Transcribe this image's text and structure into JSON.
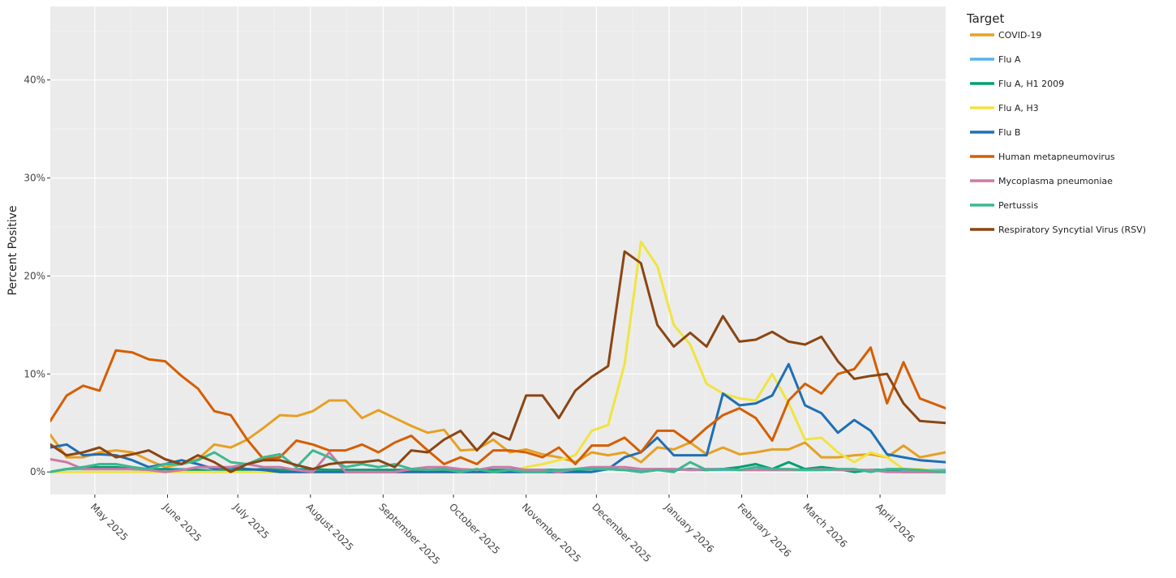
{
  "chart_data": {
    "type": "line",
    "ylabel": "Percent Positive",
    "yticks": [
      0,
      10,
      20,
      30,
      40
    ],
    "ytick_suffix": "%",
    "ylim": [
      -2.3,
      47.5
    ],
    "xlim": [
      "2025-04-12",
      "2026-04-29"
    ],
    "xticks": [
      {
        "date": "2025-05-01",
        "label": "May 2025"
      },
      {
        "date": "2025-06-01",
        "label": "June 2025"
      },
      {
        "date": "2025-07-01",
        "label": "July 2025"
      },
      {
        "date": "2025-08-01",
        "label": "August 2025"
      },
      {
        "date": "2025-09-01",
        "label": "September 2025"
      },
      {
        "date": "2025-10-01",
        "label": "October 2025"
      },
      {
        "date": "2025-11-01",
        "label": "November 2025"
      },
      {
        "date": "2025-12-01",
        "label": "December 2025"
      },
      {
        "date": "2026-01-01",
        "label": "January 2026"
      },
      {
        "date": "2026-02-01",
        "label": "February 2026"
      },
      {
        "date": "2026-03-01",
        "label": "March 2026"
      },
      {
        "date": "2026-04-01",
        "label": "April 2026"
      }
    ],
    "grid": true,
    "legend_position": "right",
    "legend_title": "Target",
    "x": [
      "2025-04-12",
      "2025-04-19",
      "2025-04-26",
      "2025-05-03",
      "2025-05-10",
      "2025-05-17",
      "2025-05-24",
      "2025-05-31",
      "2025-06-07",
      "2025-06-14",
      "2025-06-21",
      "2025-06-28",
      "2025-07-05",
      "2025-07-12",
      "2025-07-19",
      "2025-07-26",
      "2025-08-02",
      "2025-08-09",
      "2025-08-16",
      "2025-08-23",
      "2025-08-30",
      "2025-09-06",
      "2025-09-13",
      "2025-09-20",
      "2025-09-27",
      "2025-10-04",
      "2025-10-11",
      "2025-10-18",
      "2025-10-25",
      "2025-11-01",
      "2025-11-08",
      "2025-11-15",
      "2025-11-22",
      "2025-11-29",
      "2025-12-06",
      "2025-12-13",
      "2025-12-20",
      "2025-12-27",
      "2026-01-03",
      "2026-01-10",
      "2026-01-17",
      "2026-01-24",
      "2026-01-31",
      "2026-02-07",
      "2026-02-14",
      "2026-02-21",
      "2026-02-28",
      "2026-03-07",
      "2026-03-14",
      "2026-03-21",
      "2026-03-28",
      "2026-04-04",
      "2026-04-11",
      "2026-04-18",
      "2026-04-29"
    ],
    "series": [
      {
        "name": "COVID-19",
        "color": "#E6A024",
        "values": [
          3.8,
          1.5,
          1.5,
          2.0,
          2.2,
          2.0,
          1.2,
          0.5,
          0.8,
          1.3,
          2.8,
          2.5,
          3.3,
          4.5,
          5.8,
          5.7,
          6.2,
          7.3,
          7.3,
          5.5,
          6.3,
          5.5,
          4.7,
          4.0,
          4.3,
          2.2,
          2.3,
          3.3,
          2.0,
          2.3,
          1.8,
          1.5,
          1.0,
          2.0,
          1.7,
          2.0,
          1.0,
          2.5,
          2.3,
          3.0,
          1.8,
          2.5,
          1.8,
          2.0,
          2.3,
          2.3,
          3.0,
          1.5,
          1.5,
          1.7,
          1.8,
          1.5,
          2.7,
          1.5,
          2.0
        ]
      },
      {
        "name": "Flu A",
        "color": "#56B4E9",
        "values": [
          0.0,
          0.3,
          0.3,
          0.3,
          0.3,
          0.3,
          0.3,
          0.3,
          0.3,
          0.2,
          0.2,
          0.3,
          0.3,
          0.2,
          0.2,
          0.3,
          0.3,
          0.2,
          0.2,
          0.2,
          0.2,
          0.2,
          0.2,
          0.2,
          0.2,
          0.2,
          0.2,
          0.2,
          0.2,
          0.2,
          0.2,
          0.2,
          0.2,
          0.3,
          0.3,
          0.2,
          0.2,
          0.3,
          0.3,
          0.2,
          0.2,
          0.2,
          0.2,
          0.2,
          0.2,
          0.2,
          0.2,
          0.2,
          0.2,
          0.2,
          0.2,
          0.2,
          0.2,
          0.2,
          0.2
        ]
      },
      {
        "name": "Flu A, H1 2009",
        "color": "#009E73",
        "values": [
          0.0,
          0.3,
          0.5,
          0.5,
          0.5,
          0.3,
          0.2,
          0.3,
          0.2,
          0.2,
          0.0,
          0.2,
          0.2,
          0.3,
          0.2,
          0.2,
          0.3,
          0.2,
          0.2,
          0.2,
          0.2,
          0.2,
          0.2,
          0.2,
          0.2,
          0.2,
          0.2,
          0.2,
          0.2,
          0.2,
          0.2,
          0.2,
          0.2,
          0.3,
          0.3,
          0.2,
          0.0,
          0.2,
          0.2,
          0.3,
          0.2,
          0.3,
          0.5,
          0.8,
          0.3,
          1.0,
          0.3,
          0.5,
          0.3,
          0.0,
          0.2,
          0.2,
          0.0,
          0.0,
          0.0
        ]
      },
      {
        "name": "Flu A, H3",
        "color": "#F0E442",
        "values": [
          0.0,
          0.0,
          0.0,
          0.0,
          0.0,
          0.0,
          0.0,
          0.0,
          0.0,
          0.0,
          0.0,
          0.0,
          0.0,
          0.0,
          0.0,
          0.0,
          0.0,
          0.0,
          0.0,
          0.0,
          0.0,
          0.0,
          0.0,
          0.0,
          0.0,
          0.0,
          0.0,
          0.0,
          0.0,
          0.5,
          0.8,
          1.2,
          1.7,
          4.2,
          4.8,
          11.0,
          23.5,
          21.0,
          15.0,
          13.0,
          9.0,
          8.0,
          7.5,
          7.3,
          10.0,
          7.0,
          3.3,
          3.5,
          2.0,
          1.0,
          2.0,
          1.5,
          0.3,
          0.3,
          0.0
        ]
      },
      {
        "name": "Flu B",
        "color": "#1F6FB3",
        "values": [
          2.5,
          2.8,
          1.7,
          1.8,
          1.7,
          1.2,
          0.5,
          0.8,
          1.2,
          0.8,
          0.3,
          0.5,
          0.3,
          0.2,
          0.0,
          0.0,
          0.0,
          0.0,
          0.0,
          0.0,
          0.0,
          0.0,
          0.0,
          0.0,
          0.0,
          0.0,
          0.0,
          0.0,
          0.0,
          0.0,
          0.0,
          0.0,
          0.0,
          0.0,
          0.3,
          1.5,
          2.0,
          3.5,
          1.7,
          1.7,
          1.7,
          8.0,
          6.8,
          7.0,
          7.8,
          11.0,
          6.8,
          6.0,
          4.0,
          5.3,
          4.2,
          1.8,
          1.5,
          1.2,
          1.0
        ]
      },
      {
        "name": "Human metapneumovirus",
        "color": "#D55E00",
        "values": [
          5.2,
          7.8,
          8.8,
          8.3,
          12.4,
          12.2,
          11.5,
          11.3,
          9.8,
          8.5,
          6.2,
          5.8,
          3.3,
          1.3,
          1.5,
          3.2,
          2.8,
          2.2,
          2.2,
          2.8,
          2.0,
          3.0,
          3.7,
          2.2,
          0.8,
          1.5,
          0.8,
          2.2,
          2.2,
          2.0,
          1.5,
          2.5,
          0.8,
          2.7,
          2.7,
          3.5,
          2.0,
          4.2,
          4.2,
          3.0,
          4.5,
          5.8,
          6.5,
          5.5,
          3.2,
          7.3,
          9.0,
          8.0,
          10.0,
          10.5,
          12.7,
          7.0,
          11.2,
          7.5,
          6.5
        ]
      },
      {
        "name": "Mycoplasma pneumoniae",
        "color": "#CC79A7",
        "values": [
          1.3,
          1.0,
          0.3,
          0.3,
          0.3,
          0.3,
          0.2,
          0.0,
          0.2,
          0.5,
          0.5,
          0.5,
          0.8,
          0.5,
          0.5,
          0.2,
          0.0,
          2.0,
          0.0,
          0.0,
          0.0,
          0.0,
          0.3,
          0.5,
          0.5,
          0.3,
          0.2,
          0.5,
          0.5,
          0.2,
          0.2,
          0.0,
          0.3,
          0.5,
          0.5,
          0.5,
          0.3,
          0.3,
          0.3,
          0.2,
          0.3,
          0.3,
          0.2,
          0.2,
          0.2,
          0.2,
          0.2,
          0.3,
          0.2,
          0.2,
          0.2,
          0.0,
          0.0,
          0.0,
          0.0
        ]
      },
      {
        "name": "Pertussis",
        "color": "#3DB88F",
        "values": [
          0.0,
          0.3,
          0.5,
          0.8,
          0.8,
          0.5,
          0.3,
          0.8,
          0.8,
          1.2,
          2.0,
          1.0,
          0.8,
          1.5,
          1.8,
          0.5,
          2.2,
          1.5,
          0.5,
          0.8,
          0.5,
          0.8,
          0.3,
          0.2,
          0.3,
          0.0,
          0.3,
          0.0,
          0.2,
          0.0,
          0.0,
          0.2,
          0.3,
          0.3,
          0.3,
          0.2,
          0.0,
          0.2,
          0.0,
          1.0,
          0.2,
          0.3,
          0.2,
          0.5,
          0.3,
          0.3,
          0.2,
          0.2,
          0.3,
          0.3,
          0.0,
          0.3,
          0.3,
          0.2,
          0.0
        ]
      },
      {
        "name": "Respiratory Syncytial Virus (RSV)",
        "color": "#8B4513",
        "values": [
          2.8,
          1.7,
          2.0,
          2.5,
          1.5,
          1.8,
          2.2,
          1.3,
          0.8,
          1.7,
          1.0,
          0.0,
          0.8,
          1.2,
          1.2,
          0.7,
          0.3,
          0.8,
          1.0,
          1.0,
          1.2,
          0.5,
          2.2,
          2.0,
          3.3,
          4.2,
          2.2,
          4.0,
          3.3,
          7.8,
          7.8,
          5.5,
          8.3,
          9.7,
          10.8,
          22.5,
          21.3,
          15.0,
          12.8,
          14.2,
          12.8,
          15.9,
          13.3,
          13.5,
          14.3,
          13.3,
          13.0,
          13.8,
          11.3,
          9.5,
          9.8,
          10.0,
          7.0,
          5.2,
          5.0
        ]
      }
    ]
  }
}
